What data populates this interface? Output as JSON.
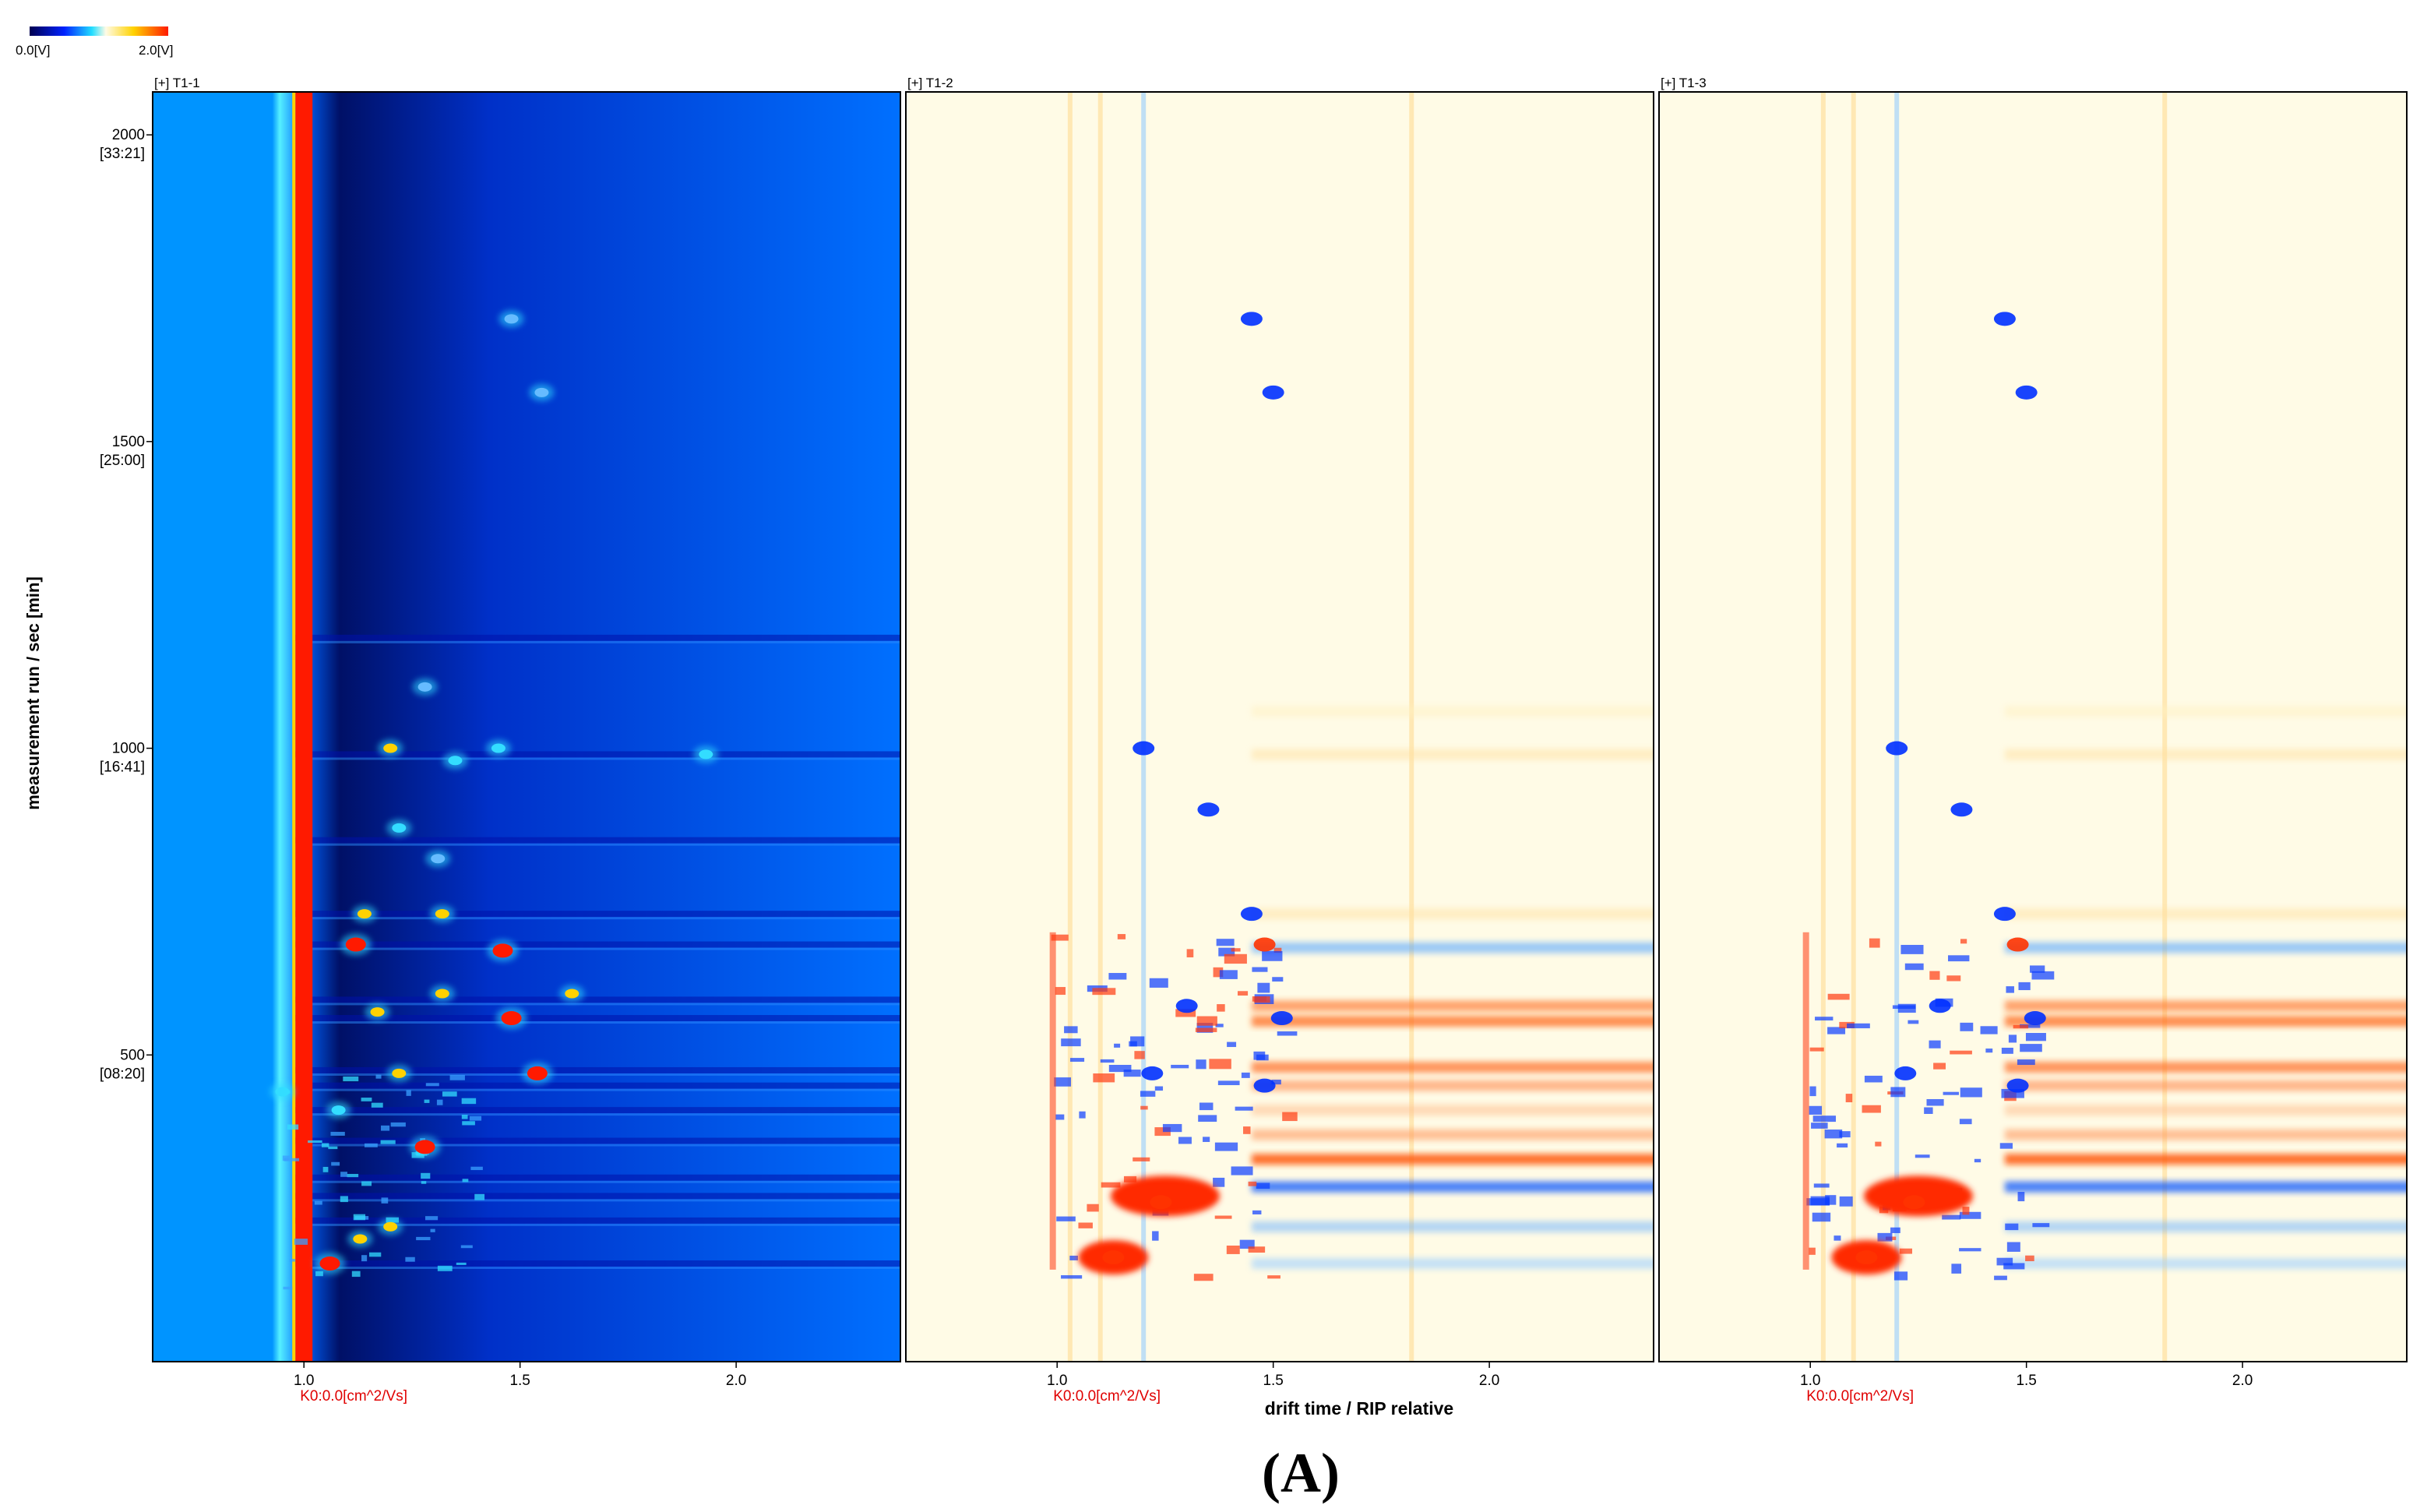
{
  "colors": {
    "bg_blue": "#0077ff",
    "dark_blue": "#001a8a",
    "cream": "#fffbe6",
    "red": "#ff1a00",
    "orange": "#ff6a1a",
    "yellow": "#ffd200",
    "cyan": "#33ddff",
    "axis_red": "#e00000",
    "frame": "#000000"
  },
  "colorbar": {
    "min_label": "0.0[V]",
    "max_label": "2.0[V]"
  },
  "y_axis": {
    "label": "measurement run / sec [min]"
  },
  "x_axis": {
    "label": "drift time / RIP relative",
    "k0_label": "K0:0.0[cm^2/Vs]"
  },
  "caption": "(A)",
  "chart_data": {
    "type": "heatmap",
    "xlim": [
      0.65,
      2.38
    ],
    "ylim": [
      0,
      2070
    ],
    "x_ticks": [
      1.0,
      1.5,
      2.0
    ],
    "x_tick_labels": [
      "1.0",
      "1.5",
      "2.0"
    ],
    "y_ticks": [
      {
        "value": 500,
        "label": "500",
        "sub": "[08:20]"
      },
      {
        "value": 1000,
        "label": "1000",
        "sub": "[16:41]"
      },
      {
        "value": 1500,
        "label": "1500",
        "sub": "[25:00]"
      },
      {
        "value": 2000,
        "label": "2000",
        "sub": "[33:21]"
      }
    ],
    "panels": [
      {
        "title": "[+] T1-1",
        "mode": "intensity"
      },
      {
        "title": "[+] T1-2",
        "mode": "difference"
      },
      {
        "title": "[+] T1-3",
        "mode": "difference"
      }
    ],
    "peaks_intensity": [
      {
        "x": 1.2,
        "y": 1000,
        "level": "high"
      },
      {
        "x": 1.28,
        "y": 1100,
        "level": "low"
      },
      {
        "x": 1.35,
        "y": 980,
        "level": "mid"
      },
      {
        "x": 1.45,
        "y": 1000,
        "level": "mid"
      },
      {
        "x": 1.93,
        "y": 990,
        "level": "mid"
      },
      {
        "x": 1.22,
        "y": 870,
        "level": "mid"
      },
      {
        "x": 1.31,
        "y": 820,
        "level": "low"
      },
      {
        "x": 1.14,
        "y": 730,
        "level": "high"
      },
      {
        "x": 1.32,
        "y": 730,
        "level": "high"
      },
      {
        "x": 1.12,
        "y": 680,
        "level": "peak"
      },
      {
        "x": 1.46,
        "y": 670,
        "level": "peak"
      },
      {
        "x": 1.17,
        "y": 570,
        "level": "high"
      },
      {
        "x": 1.32,
        "y": 600,
        "level": "high"
      },
      {
        "x": 1.48,
        "y": 560,
        "level": "peak"
      },
      {
        "x": 1.62,
        "y": 600,
        "level": "high"
      },
      {
        "x": 1.22,
        "y": 470,
        "level": "high"
      },
      {
        "x": 1.54,
        "y": 470,
        "level": "peak"
      },
      {
        "x": 0.95,
        "y": 440,
        "level": "mid"
      },
      {
        "x": 1.08,
        "y": 410,
        "level": "mid"
      },
      {
        "x": 1.28,
        "y": 350,
        "level": "peak"
      },
      {
        "x": 1.06,
        "y": 160,
        "level": "peak"
      },
      {
        "x": 1.13,
        "y": 200,
        "level": "high"
      },
      {
        "x": 1.2,
        "y": 220,
        "level": "high"
      },
      {
        "x": 1.55,
        "y": 1580,
        "level": "low"
      },
      {
        "x": 1.48,
        "y": 1700,
        "level": "low"
      }
    ],
    "difference_features": [
      {
        "x": 1.2,
        "y": 1000,
        "sign": "negative"
      },
      {
        "x": 1.35,
        "y": 900,
        "sign": "negative"
      },
      {
        "x": 1.45,
        "y": 730,
        "sign": "negative"
      },
      {
        "x": 1.48,
        "y": 680,
        "sign": "positive"
      },
      {
        "x": 1.3,
        "y": 580,
        "sign": "negative"
      },
      {
        "x": 1.52,
        "y": 560,
        "sign": "negative"
      },
      {
        "x": 1.22,
        "y": 470,
        "sign": "negative"
      },
      {
        "x": 1.48,
        "y": 450,
        "sign": "negative"
      },
      {
        "x": 1.24,
        "y": 260,
        "sign": "positive"
      },
      {
        "x": 1.13,
        "y": 170,
        "sign": "positive"
      },
      {
        "x": 1.5,
        "y": 1580,
        "sign": "negative"
      },
      {
        "x": 1.45,
        "y": 1700,
        "sign": "negative"
      }
    ]
  }
}
